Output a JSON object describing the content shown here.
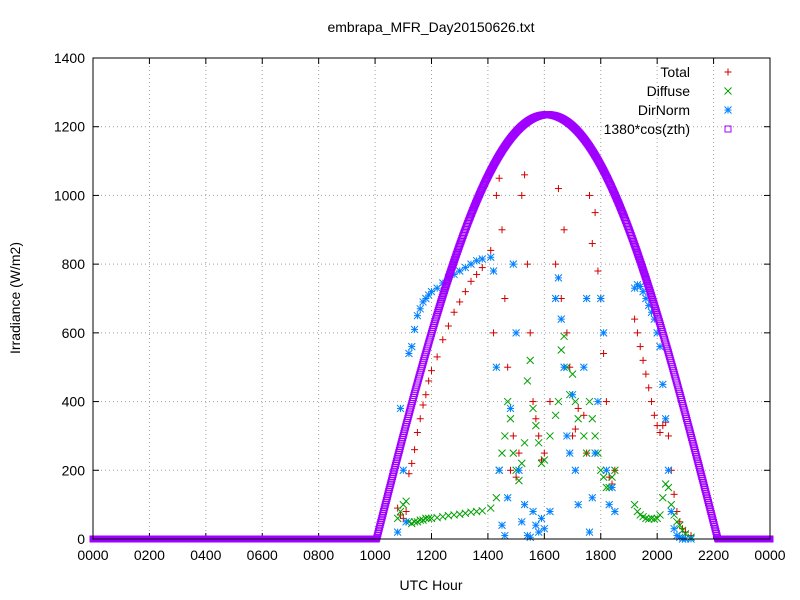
{
  "chart_data": {
    "type": "scatter",
    "title": "embrapa_MFR_Day20150626.txt",
    "xlabel": "UTC Hour",
    "ylabel": "Irradiance (W/m2)",
    "x_range_hours": [
      0,
      24
    ],
    "ylim": [
      0,
      1400
    ],
    "x_tick_labels": [
      "0000",
      "0200",
      "0400",
      "0600",
      "0800",
      "1000",
      "1200",
      "1400",
      "1600",
      "1800",
      "2000",
      "2200",
      "0000"
    ],
    "y_ticks": [
      0,
      200,
      400,
      600,
      800,
      1000,
      1200,
      1400
    ],
    "grid": true,
    "legend_position": "top-right",
    "series": [
      {
        "name": "Total",
        "marker": "plus",
        "color": "#d00000",
        "points": [
          [
            10.8,
            90
          ],
          [
            10.9,
            70
          ],
          [
            11.0,
            60
          ],
          [
            11.1,
            80
          ],
          [
            11.2,
            190
          ],
          [
            11.3,
            220
          ],
          [
            11.4,
            260
          ],
          [
            11.5,
            310
          ],
          [
            11.6,
            350
          ],
          [
            11.7,
            390
          ],
          [
            11.8,
            420
          ],
          [
            11.9,
            460
          ],
          [
            12.0,
            490
          ],
          [
            12.2,
            530
          ],
          [
            12.4,
            580
          ],
          [
            12.6,
            620
          ],
          [
            12.8,
            660
          ],
          [
            13.0,
            690
          ],
          [
            13.2,
            720
          ],
          [
            13.4,
            750
          ],
          [
            13.6,
            770
          ],
          [
            13.8,
            790
          ],
          [
            14.1,
            840
          ],
          [
            14.2,
            600
          ],
          [
            14.3,
            1000
          ],
          [
            14.4,
            1050
          ],
          [
            14.5,
            900
          ],
          [
            14.6,
            700
          ],
          [
            14.7,
            500
          ],
          [
            14.8,
            200
          ],
          [
            14.9,
            300
          ],
          [
            15.0,
            180
          ],
          [
            15.1,
            250
          ],
          [
            15.2,
            1000
          ],
          [
            15.3,
            1060
          ],
          [
            15.4,
            800
          ],
          [
            15.5,
            600
          ],
          [
            15.6,
            400
          ],
          [
            15.7,
            350
          ],
          [
            15.8,
            300
          ],
          [
            15.9,
            230
          ],
          [
            16.0,
            250
          ],
          [
            16.2,
            400
          ],
          [
            16.4,
            800
          ],
          [
            16.5,
            1020
          ],
          [
            16.6,
            700
          ],
          [
            16.7,
            900
          ],
          [
            16.8,
            600
          ],
          [
            16.9,
            500
          ],
          [
            17.0,
            300
          ],
          [
            17.1,
            320
          ],
          [
            17.2,
            380
          ],
          [
            17.4,
            360
          ],
          [
            17.5,
            250
          ],
          [
            17.6,
            1000
          ],
          [
            17.7,
            860
          ],
          [
            17.8,
            950
          ],
          [
            17.9,
            780
          ],
          [
            18.0,
            700
          ],
          [
            18.1,
            540
          ],
          [
            18.2,
            400
          ],
          [
            18.3,
            180
          ],
          [
            18.4,
            160
          ],
          [
            18.5,
            200
          ],
          [
            19.2,
            640
          ],
          [
            19.3,
            600
          ],
          [
            19.4,
            560
          ],
          [
            19.5,
            520
          ],
          [
            19.6,
            480
          ],
          [
            19.7,
            440
          ],
          [
            19.8,
            400
          ],
          [
            19.9,
            360
          ],
          [
            20.0,
            330
          ],
          [
            20.1,
            310
          ],
          [
            20.2,
            330
          ],
          [
            20.3,
            340
          ],
          [
            20.4,
            300
          ],
          [
            20.5,
            200
          ],
          [
            20.6,
            130
          ],
          [
            20.7,
            80
          ],
          [
            20.8,
            50
          ],
          [
            20.9,
            30
          ],
          [
            21.0,
            20
          ],
          [
            21.2,
            10
          ]
        ]
      },
      {
        "name": "Diffuse",
        "marker": "cross",
        "color": "#00a000",
        "points": [
          [
            10.8,
            60
          ],
          [
            10.9,
            80
          ],
          [
            11.0,
            100
          ],
          [
            11.1,
            110
          ],
          [
            11.2,
            50
          ],
          [
            11.3,
            45
          ],
          [
            11.4,
            50
          ],
          [
            11.5,
            50
          ],
          [
            11.6,
            55
          ],
          [
            11.7,
            55
          ],
          [
            11.8,
            60
          ],
          [
            11.9,
            60
          ],
          [
            12.0,
            60
          ],
          [
            12.2,
            62
          ],
          [
            12.4,
            65
          ],
          [
            12.6,
            68
          ],
          [
            12.8,
            70
          ],
          [
            13.0,
            72
          ],
          [
            13.2,
            75
          ],
          [
            13.4,
            78
          ],
          [
            13.6,
            80
          ],
          [
            13.8,
            82
          ],
          [
            14.1,
            90
          ],
          [
            14.3,
            120
          ],
          [
            14.4,
            200
          ],
          [
            14.5,
            250
          ],
          [
            14.6,
            300
          ],
          [
            14.7,
            400
          ],
          [
            14.8,
            350
          ],
          [
            14.9,
            250
          ],
          [
            15.0,
            200
          ],
          [
            15.1,
            170
          ],
          [
            15.2,
            220
          ],
          [
            15.3,
            280
          ],
          [
            15.4,
            460
          ],
          [
            15.5,
            520
          ],
          [
            15.6,
            380
          ],
          [
            15.7,
            330
          ],
          [
            15.8,
            280
          ],
          [
            15.9,
            220
          ],
          [
            16.0,
            230
          ],
          [
            16.2,
            300
          ],
          [
            16.4,
            360
          ],
          [
            16.5,
            400
          ],
          [
            16.6,
            550
          ],
          [
            16.7,
            590
          ],
          [
            16.8,
            500
          ],
          [
            16.9,
            420
          ],
          [
            17.0,
            480
          ],
          [
            17.1,
            400
          ],
          [
            17.2,
            350
          ],
          [
            17.4,
            300
          ],
          [
            17.5,
            250
          ],
          [
            17.6,
            400
          ],
          [
            17.7,
            350
          ],
          [
            17.8,
            300
          ],
          [
            17.9,
            250
          ],
          [
            18.0,
            200
          ],
          [
            18.1,
            180
          ],
          [
            18.2,
            150
          ],
          [
            18.3,
            150
          ],
          [
            18.4,
            180
          ],
          [
            18.5,
            200
          ],
          [
            19.2,
            100
          ],
          [
            19.3,
            80
          ],
          [
            19.4,
            70
          ],
          [
            19.5,
            65
          ],
          [
            19.6,
            60
          ],
          [
            19.7,
            58
          ],
          [
            19.8,
            60
          ],
          [
            19.9,
            58
          ],
          [
            20.0,
            60
          ],
          [
            20.1,
            70
          ],
          [
            20.2,
            120
          ],
          [
            20.3,
            160
          ],
          [
            20.4,
            150
          ],
          [
            20.5,
            100
          ],
          [
            20.6,
            70
          ],
          [
            20.7,
            50
          ],
          [
            20.8,
            40
          ],
          [
            20.9,
            25
          ],
          [
            21.0,
            15
          ],
          [
            21.2,
            5
          ]
        ]
      },
      {
        "name": "DirNorm",
        "marker": "star",
        "color": "#0080ff",
        "points": [
          [
            10.8,
            20
          ],
          [
            10.9,
            380
          ],
          [
            11.0,
            200
          ],
          [
            11.1,
            50
          ],
          [
            11.2,
            540
          ],
          [
            11.3,
            560
          ],
          [
            11.4,
            610
          ],
          [
            11.5,
            650
          ],
          [
            11.6,
            670
          ],
          [
            11.7,
            690
          ],
          [
            11.8,
            700
          ],
          [
            11.9,
            710
          ],
          [
            12.0,
            720
          ],
          [
            12.2,
            730
          ],
          [
            12.4,
            745
          ],
          [
            12.6,
            760
          ],
          [
            12.8,
            770
          ],
          [
            13.0,
            780
          ],
          [
            13.2,
            790
          ],
          [
            13.4,
            800
          ],
          [
            13.6,
            810
          ],
          [
            13.8,
            815
          ],
          [
            14.1,
            820
          ],
          [
            14.2,
            780
          ],
          [
            14.3,
            500
          ],
          [
            14.4,
            200
          ],
          [
            14.5,
            40
          ],
          [
            14.6,
            10
          ],
          [
            14.7,
            120
          ],
          [
            14.8,
            380
          ],
          [
            14.9,
            800
          ],
          [
            15.0,
            600
          ],
          [
            15.1,
            200
          ],
          [
            15.2,
            50
          ],
          [
            15.3,
            100
          ],
          [
            15.4,
            10
          ],
          [
            15.5,
            5
          ],
          [
            15.6,
            80
          ],
          [
            15.7,
            40
          ],
          [
            15.8,
            20
          ],
          [
            15.9,
            60
          ],
          [
            16.0,
            30
          ],
          [
            16.2,
            80
          ],
          [
            16.4,
            700
          ],
          [
            16.5,
            760
          ],
          [
            16.6,
            640
          ],
          [
            16.7,
            500
          ],
          [
            16.8,
            300
          ],
          [
            16.9,
            250
          ],
          [
            17.0,
            420
          ],
          [
            17.1,
            200
          ],
          [
            17.2,
            100
          ],
          [
            17.4,
            500
          ],
          [
            17.5,
            700
          ],
          [
            17.6,
            20
          ],
          [
            17.7,
            120
          ],
          [
            17.8,
            250
          ],
          [
            17.9,
            400
          ],
          [
            18.0,
            700
          ],
          [
            18.1,
            600
          ],
          [
            18.2,
            200
          ],
          [
            18.3,
            100
          ],
          [
            18.4,
            150
          ],
          [
            18.5,
            80
          ],
          [
            19.2,
            730
          ],
          [
            19.3,
            740
          ],
          [
            19.4,
            735
          ],
          [
            19.5,
            720
          ],
          [
            19.6,
            700
          ],
          [
            19.7,
            680
          ],
          [
            19.8,
            660
          ],
          [
            19.9,
            640
          ],
          [
            20.0,
            600
          ],
          [
            20.1,
            560
          ],
          [
            20.2,
            450
          ],
          [
            20.3,
            350
          ],
          [
            20.4,
            200
          ],
          [
            20.5,
            80
          ],
          [
            20.6,
            30
          ],
          [
            20.7,
            10
          ],
          [
            20.8,
            5
          ],
          [
            20.9,
            0
          ],
          [
            21.0,
            0
          ],
          [
            21.2,
            0
          ]
        ]
      },
      {
        "name": "1380*cos(zth)",
        "marker": "square",
        "color": "#a000ff",
        "curve": {
          "peak_value": 1235,
          "peak_hour": 16.1,
          "start_hour": 10.05,
          "end_hour": 22.15
        }
      }
    ]
  }
}
